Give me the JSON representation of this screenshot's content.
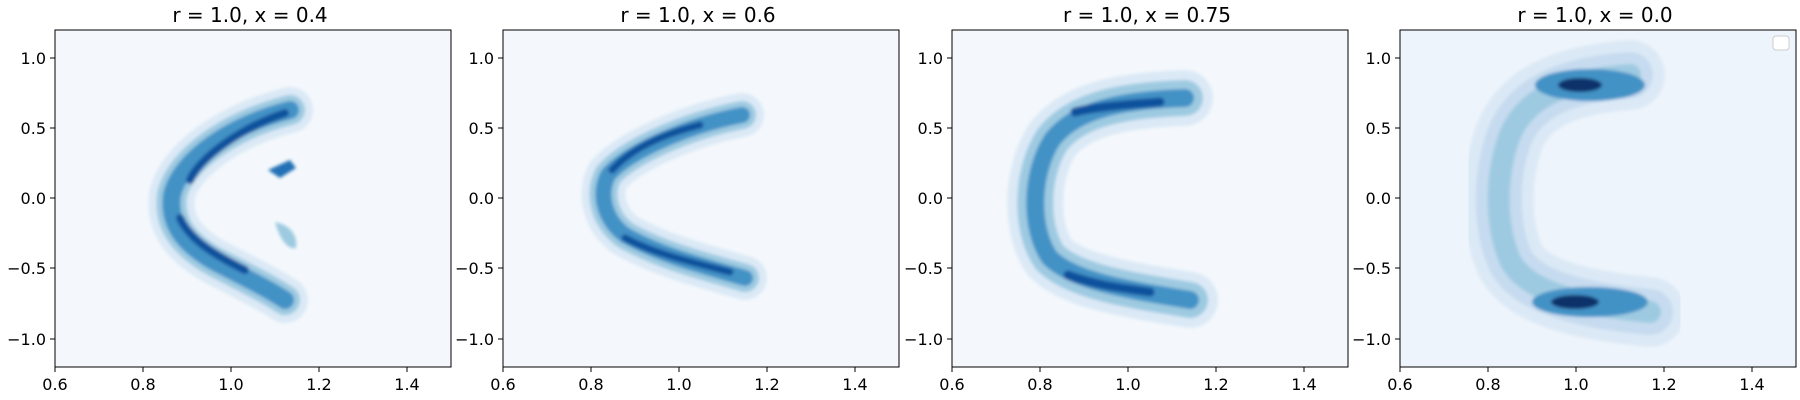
{
  "chart_data": [
    {
      "type": "contour",
      "title": "r = 1.0, x = 0.4",
      "xlim": [
        0.6,
        1.5
      ],
      "ylim": [
        -1.2,
        1.2
      ],
      "xticks": [
        0.6,
        0.8,
        1.0,
        1.2,
        1.4
      ],
      "xtick_labels": [
        "0.6",
        "0.8",
        "1.0",
        "1.2",
        "1.4"
      ],
      "yticks": [
        -1.0,
        -0.5,
        0.0,
        0.5,
        1.0
      ],
      "ytick_labels": [
        "−1.0",
        "−0.5",
        "0.0",
        "0.5",
        "1.0"
      ],
      "colormap": "Blues",
      "background_density": "#f4f8fc",
      "structure": {
        "shape": "chevron",
        "vertex": [
          0.87,
          -0.02
        ],
        "upper_end": [
          1.14,
          0.57
        ],
        "lower_end": [
          1.11,
          -0.54
        ],
        "inner_fragments": [
          [
            1.1,
            0.2
          ],
          [
            1.15,
            -0.3
          ]
        ]
      }
    },
    {
      "type": "contour",
      "title": "r = 1.0, x = 0.6",
      "xlim": [
        0.6,
        1.5
      ],
      "ylim": [
        -1.2,
        1.2
      ],
      "xticks": [
        0.6,
        0.8,
        1.0,
        1.2,
        1.4
      ],
      "xtick_labels": [
        "0.6",
        "0.8",
        "1.0",
        "1.2",
        "1.4"
      ],
      "yticks": [
        -1.0,
        -0.5,
        0.0,
        0.5,
        1.0
      ],
      "ytick_labels": [
        "−1.0",
        "−0.5",
        "0.0",
        "0.5",
        "1.0"
      ],
      "colormap": "Blues",
      "background_density": "#f4f8fc",
      "structure": {
        "shape": "chevron",
        "vertex": [
          0.83,
          0.05
        ],
        "upper_end": [
          1.14,
          0.55
        ],
        "lower_end": [
          1.13,
          -0.57
        ]
      }
    },
    {
      "type": "contour",
      "title": "r = 1.0, x = 0.75",
      "xlim": [
        0.6,
        1.5
      ],
      "ylim": [
        -1.2,
        1.2
      ],
      "xticks": [
        0.6,
        0.8,
        1.0,
        1.2,
        1.4
      ],
      "xtick_labels": [
        "0.6",
        "0.8",
        "1.0",
        "1.2",
        "1.4"
      ],
      "yticks": [
        -1.0,
        -0.5,
        0.0,
        0.5,
        1.0
      ],
      "ytick_labels": [
        "−1.0",
        "−0.5",
        "0.0",
        "0.5",
        "1.0"
      ],
      "colormap": "Blues",
      "background_density": "#f4f8fc",
      "structure": {
        "shape": "c-curve",
        "vertex": [
          0.84,
          0.0
        ],
        "upper_end": [
          1.12,
          0.68
        ],
        "lower_end": [
          1.15,
          -0.73
        ],
        "peaks": [
          [
            0.98,
            0.63
          ],
          [
            0.95,
            -0.6
          ]
        ]
      }
    },
    {
      "type": "contour",
      "title": "r = 1.0, x = 0.0",
      "xlim": [
        0.6,
        1.5
      ],
      "ylim": [
        -1.2,
        1.2
      ],
      "xticks": [
        0.6,
        0.8,
        1.0,
        1.2,
        1.4
      ],
      "xtick_labels": [
        "0.6",
        "0.8",
        "1.0",
        "1.2",
        "1.4"
      ],
      "yticks": [
        -1.0,
        -0.5,
        0.0,
        0.5,
        1.0
      ],
      "ytick_labels": [
        "−1.0",
        "−0.5",
        "0.0",
        "0.5",
        "1.0"
      ],
      "colormap": "Blues",
      "background_density": "#eef4fb",
      "legend": "top-right",
      "structure": {
        "shape": "bracket",
        "vertex": [
          0.9,
          0.0
        ],
        "upper_end": [
          1.15,
          0.8
        ],
        "lower_end": [
          1.18,
          -0.78
        ],
        "peaks": [
          [
            1.04,
            0.8
          ],
          [
            1.02,
            -0.76
          ]
        ]
      }
    }
  ]
}
